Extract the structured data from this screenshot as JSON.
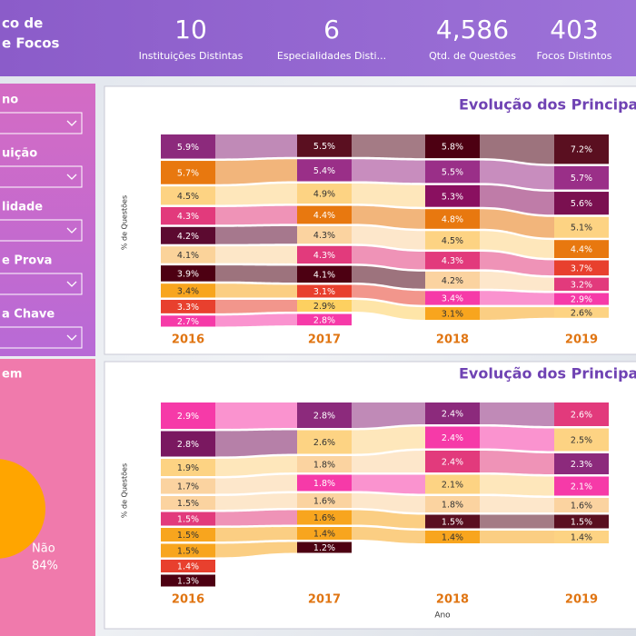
{
  "header": {
    "title_lines": [
      "co de",
      "e Focos"
    ]
  },
  "kpis": [
    {
      "value": "10",
      "label": "Instituições Distintas"
    },
    {
      "value": "6",
      "label": "Especialidades Disti..."
    },
    {
      "value": "4,586",
      "label": "Qtd. de Questões"
    },
    {
      "value": "403",
      "label": "Focos Distintos"
    }
  ],
  "filters": [
    "no",
    "uição",
    "lidade",
    "e Prova",
    "a Chave"
  ],
  "pie_section_title": "em",
  "chart_data": [
    {
      "type": "ribbon",
      "title": "Evolução dos Principais",
      "y_label": "% de Questões",
      "categories": [
        "2016",
        "2017",
        "2018",
        "2019"
      ],
      "stacks": [
        {
          "values": [
            5.9,
            5.7,
            4.5,
            4.3,
            4.2,
            4.1,
            3.9,
            3.4,
            3.3,
            2.7
          ],
          "value_labels": [
            "5.9%",
            "5.7%",
            "4.5%",
            "4.3%",
            "4.2%",
            "4.1%",
            "3.9%",
            "3.4%",
            "3.3%",
            "2.7%"
          ],
          "colors": [
            "#8c2a7c",
            "#e8780f",
            "#fdd383",
            "#e23a7c",
            "#5c0a30",
            "#fbd39a",
            "#4d0012",
            "#f8a51e",
            "#e8402e",
            "#f63aa8"
          ]
        },
        {
          "values": [
            5.5,
            5.4,
            4.9,
            4.4,
            4.3,
            4.3,
            4.1,
            3.1,
            2.9,
            2.8
          ],
          "value_labels": [
            "5.5%",
            "5.4%",
            "4.9%",
            "4.4%",
            "4.3%",
            "4.3%",
            "4.1%",
            "3.1%",
            "2.9%",
            "2.8%"
          ],
          "colors": [
            "#5a0f20",
            "#9a2f88",
            "#fdd383",
            "#e8780f",
            "#fbd3a0",
            "#e23a7c",
            "#4d0012",
            "#e8402e",
            "#fdd060",
            "#f63aa8"
          ]
        },
        {
          "values": [
            5.8,
            5.5,
            5.3,
            4.8,
            4.5,
            4.3,
            4.2,
            3.4,
            3.1
          ],
          "value_labels": [
            "5.8%",
            "5.5%",
            "5.3%",
            "4.8%",
            "4.5%",
            "4.3%",
            "4.2%",
            "3.4%",
            "3.1%"
          ],
          "colors": [
            "#4d0012",
            "#9a2f88",
            "#8a1060",
            "#e8780f",
            "#fdd383",
            "#e23a7c",
            "#fbd3a0",
            "#f63aa8",
            "#f8a51e"
          ]
        },
        {
          "values": [
            7.2,
            5.7,
            5.6,
            5.1,
            4.4,
            3.7,
            3.2,
            2.9,
            2.6
          ],
          "value_labels": [
            "7.2%",
            "5.7%",
            "5.6%",
            "5.1%",
            "4.4%",
            "3.7%",
            "3.2%",
            "2.9%",
            "2.6%"
          ],
          "colors": [
            "#5a0f20",
            "#9a2f88",
            "#7a1050",
            "#fdd383",
            "#e8780f",
            "#e8402e",
            "#e23a7c",
            "#f63aa8",
            "#fdd383"
          ]
        }
      ]
    },
    {
      "type": "ribbon",
      "title": "Evolução dos Principais",
      "y_label": "% de Questões",
      "x_label": "Ano",
      "categories": [
        "2016",
        "2017",
        "2018",
        "2019"
      ],
      "stacks": [
        {
          "values": [
            2.9,
            2.8,
            1.9,
            1.7,
            1.5,
            1.5,
            1.5,
            1.5,
            1.4,
            1.3
          ],
          "value_labels": [
            "2.9%",
            "2.8%",
            "1.9%",
            "1.7%",
            "1.5%",
            "1.5%",
            "1.5%",
            "1.5%",
            "1.4%",
            "1.3%"
          ],
          "colors": [
            "#f63aa8",
            "#7a1860",
            "#fdd383",
            "#fbd3a0",
            "#fbd3a0",
            "#e23a7c",
            "#f8a51e",
            "#f8a51e",
            "#e8402e",
            "#4d0012"
          ]
        },
        {
          "values": [
            2.8,
            2.6,
            1.8,
            1.8,
            1.6,
            1.6,
            1.4,
            1.2
          ],
          "value_labels": [
            "2.8%",
            "2.6%",
            "1.8%",
            "1.8%",
            "1.6%",
            "1.6%",
            "1.4%",
            "1.2%"
          ],
          "colors": [
            "#8c2a7c",
            "#fdd383",
            "#fbd3a0",
            "#f63aa8",
            "#fbd3a0",
            "#f8a51e",
            "#f8a51e",
            "#4d0012"
          ]
        },
        {
          "values": [
            2.4,
            2.4,
            2.4,
            2.1,
            1.8,
            1.5,
            1.4
          ],
          "value_labels": [
            "2.4%",
            "2.4%",
            "2.4%",
            "2.1%",
            "1.8%",
            "1.5%",
            "1.4%"
          ],
          "colors": [
            "#8c2a7c",
            "#f63aa8",
            "#e23a7c",
            "#fdd383",
            "#fbd3a0",
            "#5a0f20",
            "#f8a51e"
          ]
        },
        {
          "values": [
            2.6,
            2.5,
            2.3,
            2.1,
            1.6,
            1.5,
            1.4
          ],
          "value_labels": [
            "2.6%",
            "2.5%",
            "2.3%",
            "2.1%",
            "1.6%",
            "1.5%",
            "1.4%"
          ],
          "colors": [
            "#e23a7c",
            "#fdd383",
            "#8c2a7c",
            "#f63aa8",
            "#fbd3a0",
            "#5a0f20",
            "#fdd383"
          ]
        }
      ]
    },
    {
      "type": "pie",
      "categories": [
        "Não"
      ],
      "values": [
        84
      ],
      "value_labels": [
        "84%"
      ],
      "colors": [
        "#ffa500"
      ]
    }
  ]
}
